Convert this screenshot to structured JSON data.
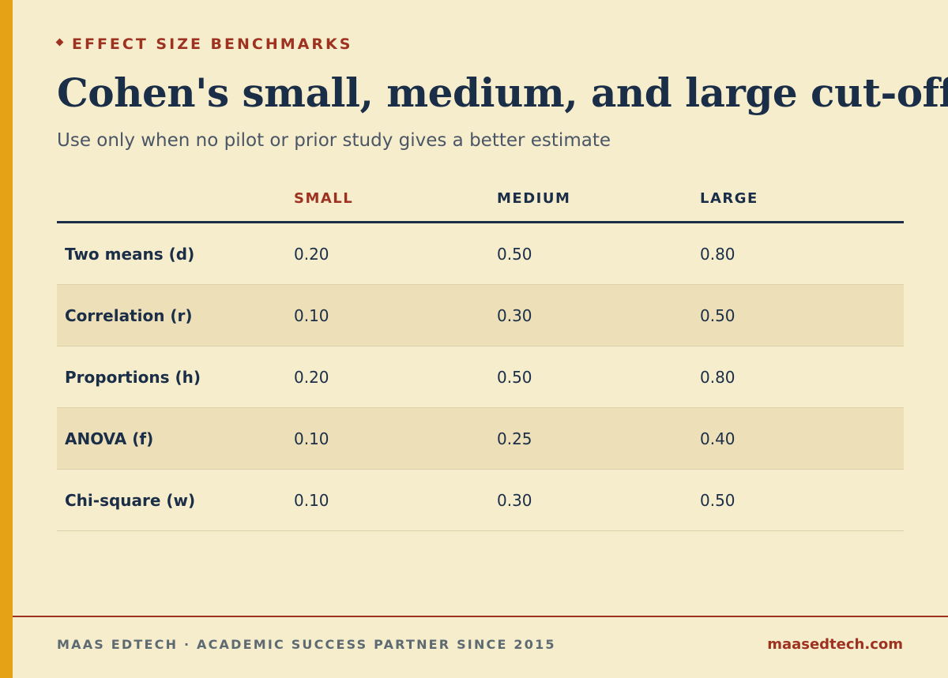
{
  "header": {
    "eyebrow": "EFFECT SIZE BENCHMARKS",
    "title": "Cohen's small, medium, and large cut-offs",
    "subtitle": "Use only when no pilot or prior study gives a better estimate"
  },
  "table": {
    "columns": [
      "",
      "SMALL",
      "MEDIUM",
      "LARGE"
    ],
    "rows": [
      {
        "label": "Two means (d)",
        "small": "0.20",
        "medium": "0.50",
        "large": "0.80"
      },
      {
        "label": "Correlation (r)",
        "small": "0.10",
        "medium": "0.30",
        "large": "0.50"
      },
      {
        "label": "Proportions (h)",
        "small": "0.20",
        "medium": "0.50",
        "large": "0.80"
      },
      {
        "label": "ANOVA (f)",
        "small": "0.10",
        "medium": "0.25",
        "large": "0.40"
      },
      {
        "label": "Chi-square (w)",
        "small": "0.10",
        "medium": "0.30",
        "large": "0.50"
      }
    ]
  },
  "footer": {
    "left": "MAAS EDTECH · ACADEMIC SUCCESS PARTNER SINCE 2015",
    "right": "maasedtech.com"
  },
  "colors": {
    "accent_bar": "#E6A216",
    "brand_red": "#9E3221",
    "navy": "#1B2E48",
    "background": "#F6EDCD",
    "row_alt": "#EDE0B8"
  }
}
